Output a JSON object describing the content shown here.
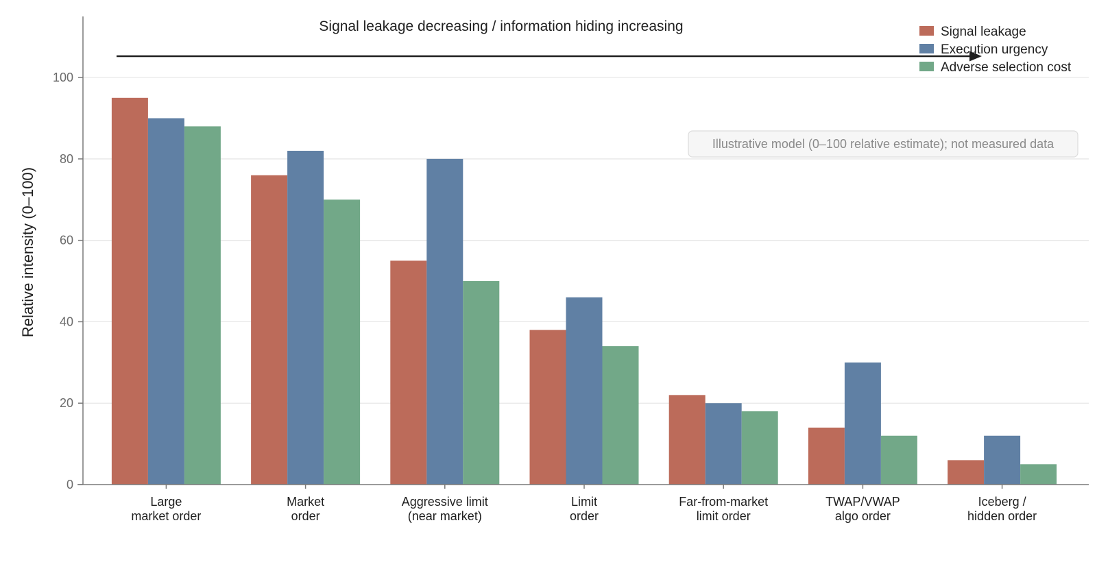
{
  "chart_data": {
    "type": "bar",
    "categories": [
      [
        "Large",
        "market order"
      ],
      [
        "Market",
        "order"
      ],
      [
        "Aggressive limit",
        "(near market)"
      ],
      [
        "Limit",
        "order"
      ],
      [
        "Far-from-market",
        "limit order"
      ],
      [
        "TWAP/VWAP",
        "algo order"
      ],
      [
        "Iceberg /",
        "hidden order"
      ]
    ],
    "series": [
      {
        "name": "Signal leakage",
        "color": "#bc6b5a",
        "values": [
          95,
          76,
          55,
          38,
          22,
          14,
          6
        ]
      },
      {
        "name": "Execution urgency",
        "color": "#6080a4",
        "values": [
          90,
          82,
          80,
          46,
          20,
          30,
          12
        ]
      },
      {
        "name": "Adverse selection cost",
        "color": "#72a888",
        "values": [
          88,
          70,
          50,
          34,
          18,
          12,
          5
        ]
      }
    ],
    "ylabel": "Relative intensity (0–100)",
    "ylim": [
      0,
      115
    ],
    "yticks": [
      0,
      20,
      40,
      60,
      80,
      100
    ],
    "grid": true,
    "legend_position": "top-right",
    "annotations": {
      "arrow_label": "Signal leakage decreasing / information hiding increasing",
      "note": "Illustrative model (0–100 relative estimate); not measured data"
    }
  }
}
